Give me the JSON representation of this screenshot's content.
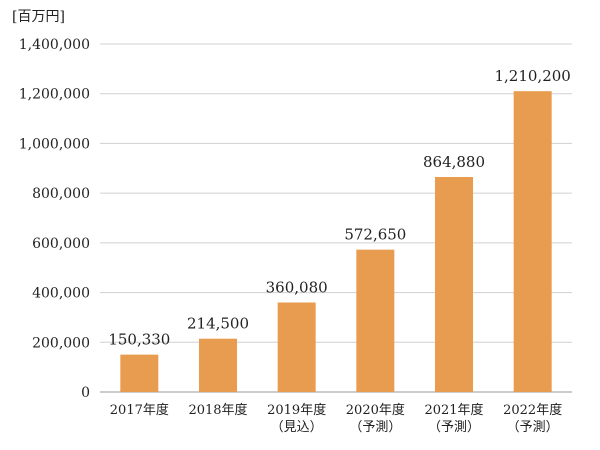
{
  "unit": "[百万円]",
  "chart_data": {
    "type": "bar",
    "title": "",
    "xlabel": "",
    "ylabel": "",
    "ylim": [
      0,
      1400000
    ],
    "yticks": [
      "0",
      "200,000",
      "400,000",
      "600,000",
      "800,000",
      "1,000,000",
      "1,200,000",
      "1,400,000"
    ],
    "categories": [
      [
        "2017年度"
      ],
      [
        "2018年度"
      ],
      [
        "2019年度",
        "（見込）"
      ],
      [
        "2020年度",
        "（予測）"
      ],
      [
        "2021年度",
        "（予測）"
      ],
      [
        "2022年度",
        "（予測）"
      ]
    ],
    "values": [
      150330,
      214500,
      360080,
      572650,
      864880,
      1210200
    ],
    "value_labels": [
      "150,330",
      "214,500",
      "360,080",
      "572,650",
      "864,880",
      "1,210,200"
    ],
    "bar_color": "#e89c4f",
    "grid": true,
    "legend": "none"
  }
}
